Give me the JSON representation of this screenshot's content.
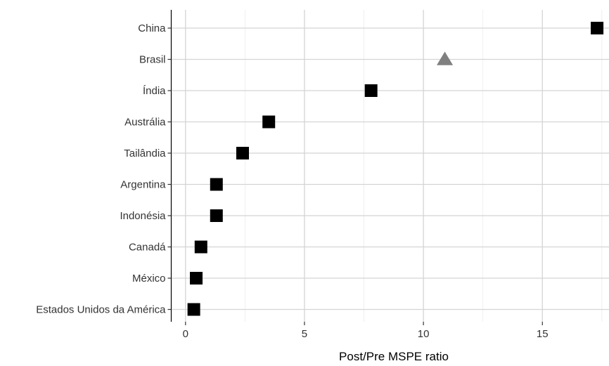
{
  "chart_data": {
    "type": "scatter",
    "title": "",
    "xlabel": "Post/Pre MSPE ratio",
    "ylabel": "",
    "xlim": [
      -0.6,
      17.8
    ],
    "x_ticks": [
      0,
      5,
      10,
      15
    ],
    "x_tick_labels": [
      "0",
      "5",
      "10",
      "15"
    ],
    "grid": true,
    "legend": "none",
    "categories": [
      "China",
      "Brasil",
      "Índia",
      "Austrália",
      "Tailândia",
      "Argentina",
      "Indonésia",
      "Canadá",
      "México",
      "Estados Unidos da América"
    ],
    "points": [
      {
        "label": "China",
        "x": 17.3,
        "marker": "square",
        "color": "#000000"
      },
      {
        "label": "Brasil",
        "x": 10.9,
        "marker": "triangle",
        "color": "#808080"
      },
      {
        "label": "Índia",
        "x": 7.8,
        "marker": "square",
        "color": "#000000"
      },
      {
        "label": "Austrália",
        "x": 3.5,
        "marker": "square",
        "color": "#000000"
      },
      {
        "label": "Tailândia",
        "x": 2.4,
        "marker": "square",
        "color": "#000000"
      },
      {
        "label": "Argentina",
        "x": 1.3,
        "marker": "square",
        "color": "#000000"
      },
      {
        "label": "Indonésia",
        "x": 1.3,
        "marker": "square",
        "color": "#000000"
      },
      {
        "label": "Canadá",
        "x": 0.65,
        "marker": "square",
        "color": "#000000"
      },
      {
        "label": "México",
        "x": 0.45,
        "marker": "square",
        "color": "#000000"
      },
      {
        "label": "Estados Unidos da América",
        "x": 0.35,
        "marker": "square",
        "color": "#000000"
      }
    ]
  }
}
